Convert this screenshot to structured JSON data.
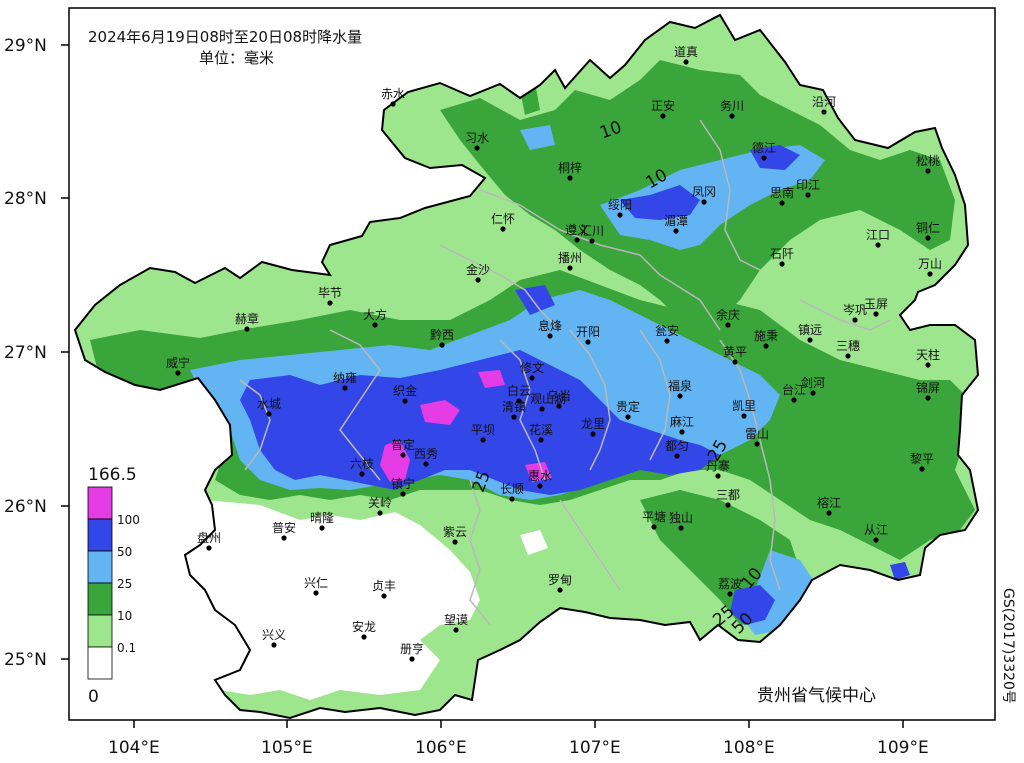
{
  "title": {
    "line1": "2024年6月19日08时至20日08时降水量",
    "line2": "单位：毫米"
  },
  "lat_labels": [
    "29°N",
    "28°N",
    "27°N",
    "26°N",
    "25°N"
  ],
  "lon_labels": [
    "104°E",
    "105°E",
    "106°E",
    "107°E",
    "108°E",
    "109°E"
  ],
  "legend": {
    "max_value": "166.5",
    "min_value": "0",
    "bins": [
      {
        "label": "100",
        "color": "#e63ce6"
      },
      {
        "label": "50",
        "color": "#3346e8"
      },
      {
        "label": "25",
        "color": "#62b4f2"
      },
      {
        "label": "10",
        "color": "#3aa53a"
      },
      {
        "label": "0.1",
        "color": "#9ee68e"
      },
      {
        "label": "",
        "color": "#ffffff"
      }
    ]
  },
  "contour_labels": [
    "10",
    "10",
    "25",
    "25",
    "10",
    "25",
    "50"
  ],
  "org": "贵州省气候中心",
  "map_code": "GS(2017)3320号",
  "colors": {
    "rain_0": "#ffffff",
    "rain_01": "#9ee68e",
    "rain_10": "#3aa53a",
    "rain_25": "#62b4f2",
    "rain_50": "#3346e8",
    "rain_100": "#e63ce6",
    "boundary": "#000000",
    "county_lines": "#b9b9b9"
  },
  "cities": [
    {
      "name": "道真"
    },
    {
      "name": "赤水"
    },
    {
      "name": "正安"
    },
    {
      "name": "务川"
    },
    {
      "name": "沿河"
    },
    {
      "name": "习水"
    },
    {
      "name": "德江"
    },
    {
      "name": "桐梓"
    },
    {
      "name": "松桃"
    },
    {
      "name": "凤冈"
    },
    {
      "name": "印江"
    },
    {
      "name": "绥阳"
    },
    {
      "name": "思南"
    },
    {
      "name": "湄潭"
    },
    {
      "name": "仁怀"
    },
    {
      "name": "遵义"
    },
    {
      "name": "汇川"
    },
    {
      "name": "江口"
    },
    {
      "name": "铜仁"
    },
    {
      "name": "石阡"
    },
    {
      "name": "播州"
    },
    {
      "name": "万山"
    },
    {
      "name": "金沙"
    },
    {
      "name": "毕节"
    },
    {
      "name": "玉屏"
    },
    {
      "name": "余庆"
    },
    {
      "name": "岑巩"
    },
    {
      "name": "赫章"
    },
    {
      "name": "大方"
    },
    {
      "name": "息烽"
    },
    {
      "name": "开阳"
    },
    {
      "name": "瓮安"
    },
    {
      "name": "施秉"
    },
    {
      "name": "镇远"
    },
    {
      "name": "三穗"
    },
    {
      "name": "天柱"
    },
    {
      "name": "黔西"
    },
    {
      "name": "黄平"
    },
    {
      "name": "威宁"
    },
    {
      "name": "修文"
    },
    {
      "name": "纳雍"
    },
    {
      "name": "白云"
    },
    {
      "name": "织金"
    },
    {
      "name": "福泉"
    },
    {
      "name": "乌当"
    },
    {
      "name": "台江"
    },
    {
      "name": "剑河"
    },
    {
      "name": "锦屏"
    },
    {
      "name": "清镇"
    },
    {
      "name": "观山湖"
    },
    {
      "name": "水城"
    },
    {
      "name": "贵定"
    },
    {
      "name": "凯里"
    },
    {
      "name": "麻江"
    },
    {
      "name": "平坝"
    },
    {
      "name": "花溪"
    },
    {
      "name": "龙里"
    },
    {
      "name": "雷山"
    },
    {
      "name": "普定"
    },
    {
      "name": "西秀"
    },
    {
      "name": "都匀"
    },
    {
      "name": "丹寨"
    },
    {
      "name": "黎平"
    },
    {
      "name": "六枝"
    },
    {
      "name": "惠水"
    },
    {
      "name": "长顺"
    },
    {
      "name": "镇宁"
    },
    {
      "name": "关岭"
    },
    {
      "name": "三都"
    },
    {
      "name": "榕江"
    },
    {
      "name": "平塘"
    },
    {
      "name": "独山"
    },
    {
      "name": "普安"
    },
    {
      "name": "晴隆"
    },
    {
      "name": "紫云"
    },
    {
      "name": "从江"
    },
    {
      "name": "盘州"
    },
    {
      "name": "兴仁"
    },
    {
      "name": "贞丰"
    },
    {
      "name": "罗甸"
    },
    {
      "name": "荔波"
    },
    {
      "name": "望谟"
    },
    {
      "name": "兴义"
    },
    {
      "name": "安龙"
    },
    {
      "name": "册亨"
    }
  ]
}
